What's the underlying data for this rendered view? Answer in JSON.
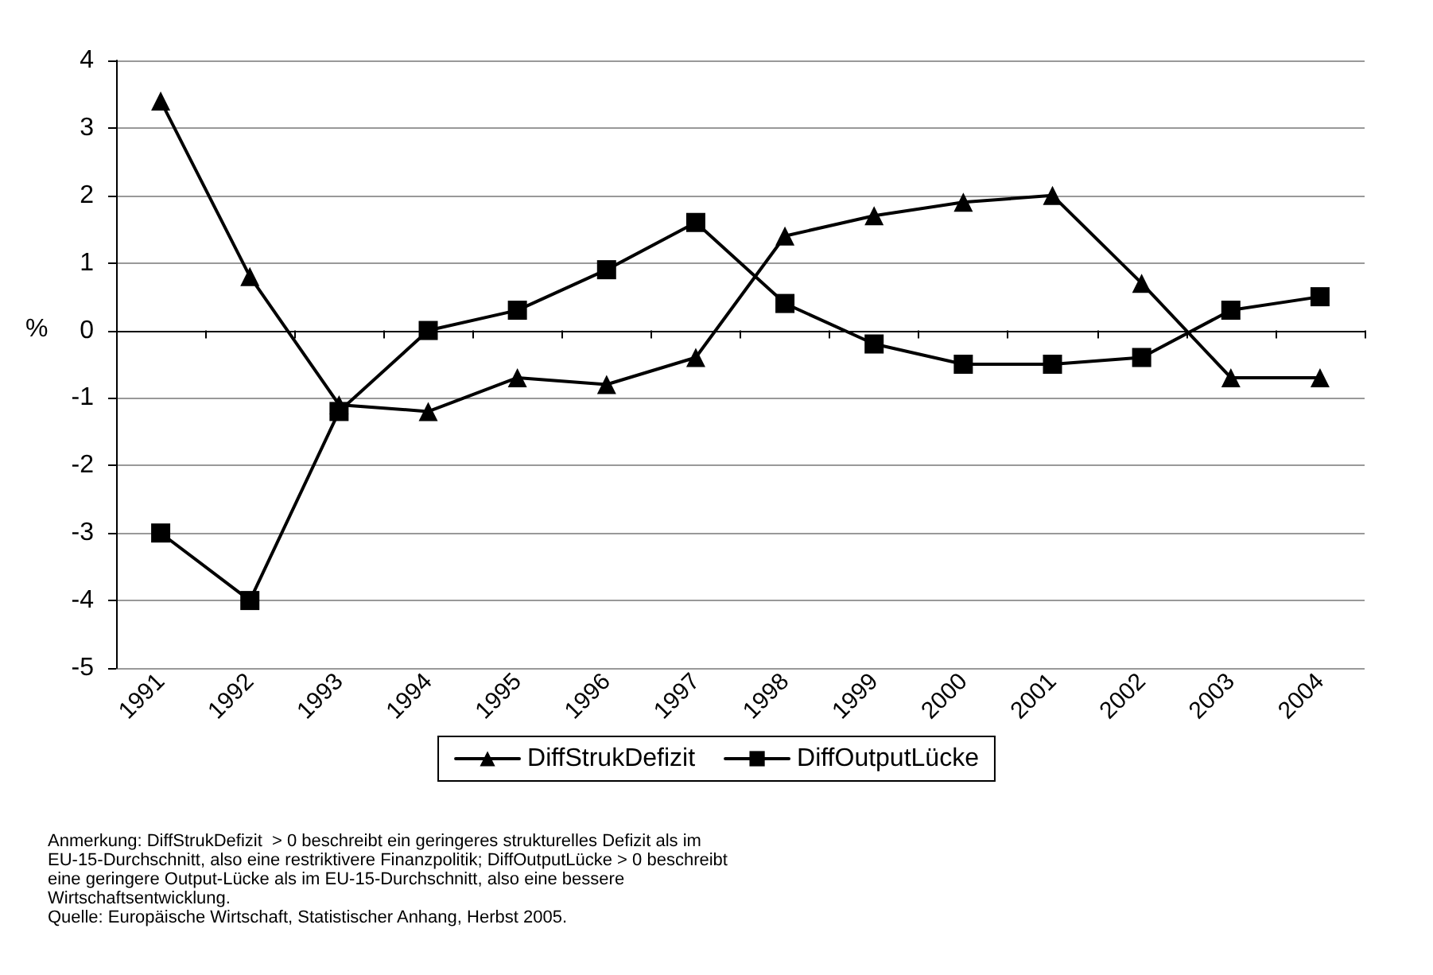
{
  "chart_data": {
    "type": "line",
    "ylabel": "%",
    "categories": [
      "1991",
      "1992",
      "1993",
      "1994",
      "1995",
      "1996",
      "1997",
      "1998",
      "1999",
      "2000",
      "2001",
      "2002",
      "2003",
      "2004"
    ],
    "series": [
      {
        "name": "DiffStrukDefizit",
        "color": "#000000",
        "marker": "triangle",
        "values": [
          3.4,
          0.8,
          -1.1,
          -1.2,
          -0.7,
          -0.8,
          -0.4,
          1.4,
          1.7,
          1.9,
          2.0,
          0.7,
          -0.7,
          -0.7
        ]
      },
      {
        "name": "DiffOutputLücke",
        "color": "#000000",
        "marker": "square",
        "values": [
          -3,
          -4,
          -1.2,
          0,
          0.3,
          0.9,
          1.6,
          0.4,
          -0.2,
          -0.5,
          -0.5,
          -0.4,
          0.3,
          0.5
        ]
      }
    ],
    "ylim": [
      -5,
      4
    ],
    "yticks": [
      -5,
      -4,
      -3,
      -2,
      -1,
      0,
      1,
      2,
      3,
      4
    ],
    "grid": "y",
    "legend": "bottom",
    "line_style": "solid",
    "annotations": [
      "Anmerkung: DiffStrukDefizit  > 0 beschreibt ein geringeres strukturelles Defizit als im EU-15-Durchschnitt, also eine restriktivere Finanzpolitik; DiffOutputLücke > 0 beschreibt eine geringere Output-Lücke als im EU-15-Durchschnitt, also eine bessere Wirtschaftsentwicklung.",
      "Quelle: Europäische Wirtschaft, Statistischer Anhang, Herbst 2005."
    ]
  }
}
